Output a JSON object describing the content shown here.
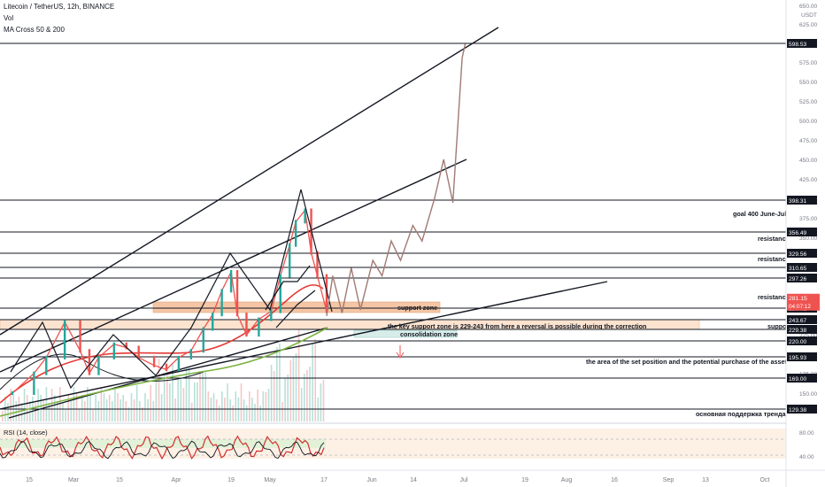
{
  "header": {
    "symbol_line": "Litecoin / TetherUS, 12h, BINANCE",
    "volume_label": "Vol",
    "indicator_label": "MA Cross 50 & 200",
    "rsi_label": "RSI (14, close)"
  },
  "price_axis": {
    "currency": "USDT",
    "ticks": [
      "650.00",
      "625.00",
      "575.00",
      "550.00",
      "525.00",
      "500.00",
      "475.00",
      "450.00",
      "425.00",
      "375.00",
      "350.00",
      "250.00",
      "225.00",
      "200.00",
      "175.00",
      "150.00"
    ]
  },
  "rsi_axis": {
    "ticks": [
      "80.00",
      "40.00"
    ]
  },
  "time_axis": {
    "labels": [
      "15",
      "Mar",
      "15",
      "Apr",
      "19",
      "May",
      "17",
      "Jun",
      "14",
      "Jul",
      "19",
      "Aug",
      "16",
      "Sep",
      "13",
      "Oct"
    ]
  },
  "levels": [
    {
      "value": 598.53,
      "label": "598.53"
    },
    {
      "value": 398.31,
      "label": "398.31"
    },
    {
      "value": 356.49,
      "label": "356.49"
    },
    {
      "value": 329.56,
      "label": "329.56"
    },
    {
      "value": 310.65,
      "label": "310.65"
    },
    {
      "value": 297.26,
      "label": "297.26"
    },
    {
      "value": 280.02,
      "label": "280.02"
    },
    {
      "value": 243.67,
      "label": "243.67"
    },
    {
      "value": 229.38,
      "label": "229.38"
    },
    {
      "value": 220.0,
      "label": "220.00"
    },
    {
      "value": 195.93,
      "label": "195.93"
    },
    {
      "value": 169.0,
      "label": "169.00"
    },
    {
      "value": 129.38,
      "label": "129.38"
    }
  ],
  "current_price": {
    "value": 281.15,
    "label": "281.15",
    "countdown": "04:07:12"
  },
  "annotations": [
    {
      "text": "goal 400 June-July"
    },
    {
      "text": "resistance"
    },
    {
      "text": "resistance"
    },
    {
      "text": "resistance"
    },
    {
      "text": "support zone"
    },
    {
      "text": "support"
    },
    {
      "text": "the key support zone is 229-243  from here a reversal is possible during the correction"
    },
    {
      "text": "consolidation zone"
    },
    {
      "text": "the area of the set position and the potential purchase of the asset"
    },
    {
      "text": "основная поддержка тренда"
    }
  ],
  "colors": {
    "candle_up": "#26a69a",
    "candle_down": "#ef5350",
    "ma_fast": "#e53935",
    "ma_slow": "#7cb342",
    "projection": "#a07a72",
    "support_zone": "#f5c6a5",
    "key_zone": "#fbe3cf",
    "consolidation_zone": "#d8ede9",
    "rsi_band": "#fbe7d3",
    "rsi_band_green": "#e2f1d7",
    "price_tag": "#ef5350"
  },
  "chart_data": {
    "type": "line",
    "title": "Litecoin / TetherUS, 12h, BINANCE",
    "x_unit": "date (2021)",
    "ylim": [
      115,
      660
    ],
    "series": [
      {
        "name": "Litecoin / TetherUS",
        "x": [
          "Feb 4",
          "Feb 11",
          "Feb 15",
          "Feb 21",
          "Feb 26",
          "Mar 1",
          "Mar 4",
          "Mar 9",
          "Mar 13",
          "Mar 17",
          "Mar 22",
          "Mar 26",
          "Mar 30",
          "Apr 3",
          "Apr 7",
          "Apr 10",
          "Apr 13",
          "Apr 16",
          "Apr 18",
          "Apr 21",
          "Apr 25",
          "Apr 29",
          "May 2",
          "May 5",
          "May 7",
          "May 10",
          "May 12",
          "May 14",
          "May 17"
        ],
        "values": [
          150,
          175,
          195,
          240,
          205,
          175,
          195,
          215,
          210,
          195,
          185,
          180,
          195,
          205,
          230,
          260,
          290,
          305,
          260,
          225,
          245,
          270,
          300,
          340,
          370,
          385,
          330,
          300,
          270
        ]
      }
    ],
    "projection": {
      "x": [
        "May 17",
        "May 19",
        "May 22",
        "May 25",
        "May 28",
        "Jun 1",
        "Jun 4",
        "Jun 7",
        "Jun 10",
        "Jun 14",
        "Jun 17",
        "Jun 21",
        "Jun 24",
        "Jun 27",
        "Jun 30",
        "Jul 1"
      ],
      "values": [
        255,
        300,
        265,
        310,
        275,
        320,
        300,
        345,
        320,
        365,
        345,
        400,
        450,
        395,
        580,
        598
      ]
    },
    "rsi": {
      "ylim": [
        20,
        90
      ],
      "levels": [
        70,
        30
      ]
    }
  }
}
